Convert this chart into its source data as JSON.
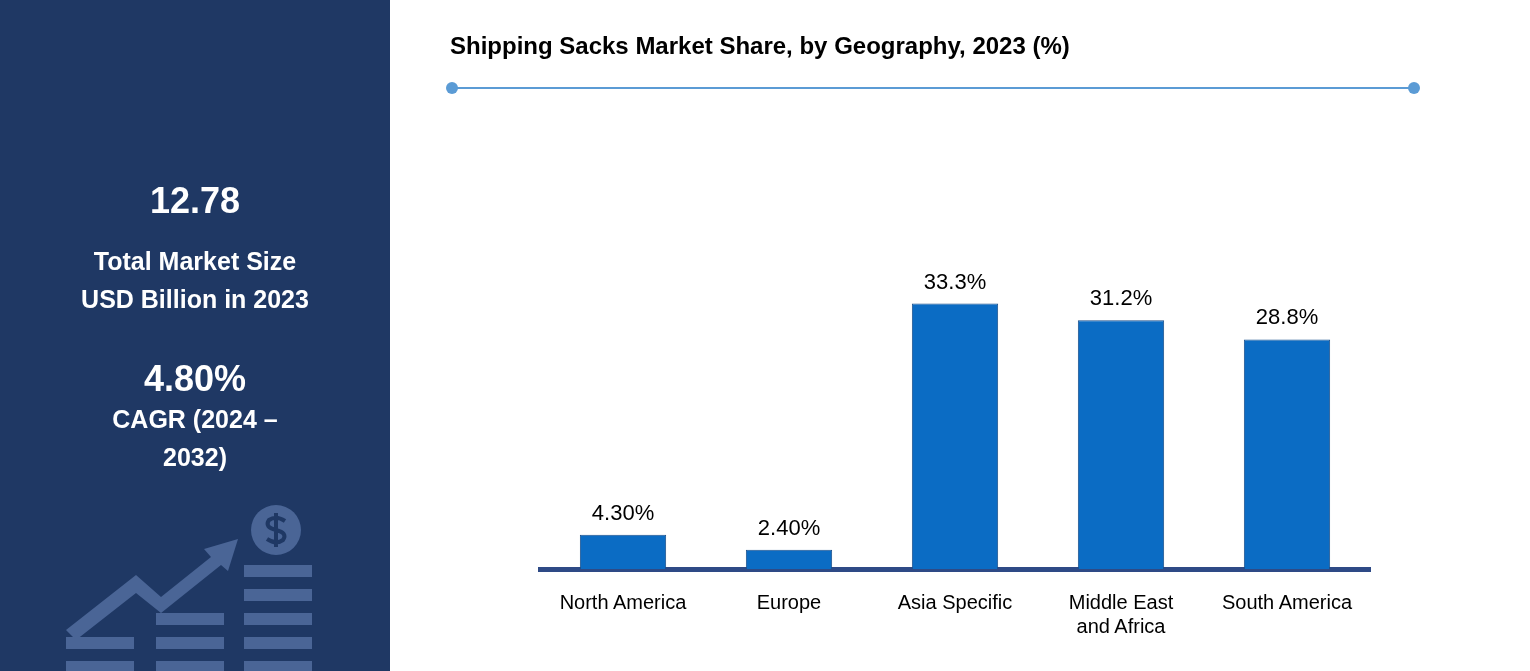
{
  "chart_data": [
    {
      "type": "other",
      "annotations": [
        "12.78",
        "Total Market Size USD Billion in 2023",
        "4.80%",
        "CAGR (2024 – 2032)"
      ]
    },
    {
      "type": "bar",
      "title": "Shipping Sacks Market Share, by Geography, 2023 (%)",
      "categories": [
        "North America",
        "Europe",
        "Asia Specific",
        "Middle East and Africa",
        "South America"
      ],
      "values": [
        4.3,
        2.4,
        33.3,
        31.2,
        28.8
      ],
      "color": "#0b6cc4",
      "value_labels": [
        "4.30%",
        "2.40%",
        "33.3%",
        "31.2%",
        "28.8%"
      ],
      "grid": false,
      "legend": false
    }
  ]
}
